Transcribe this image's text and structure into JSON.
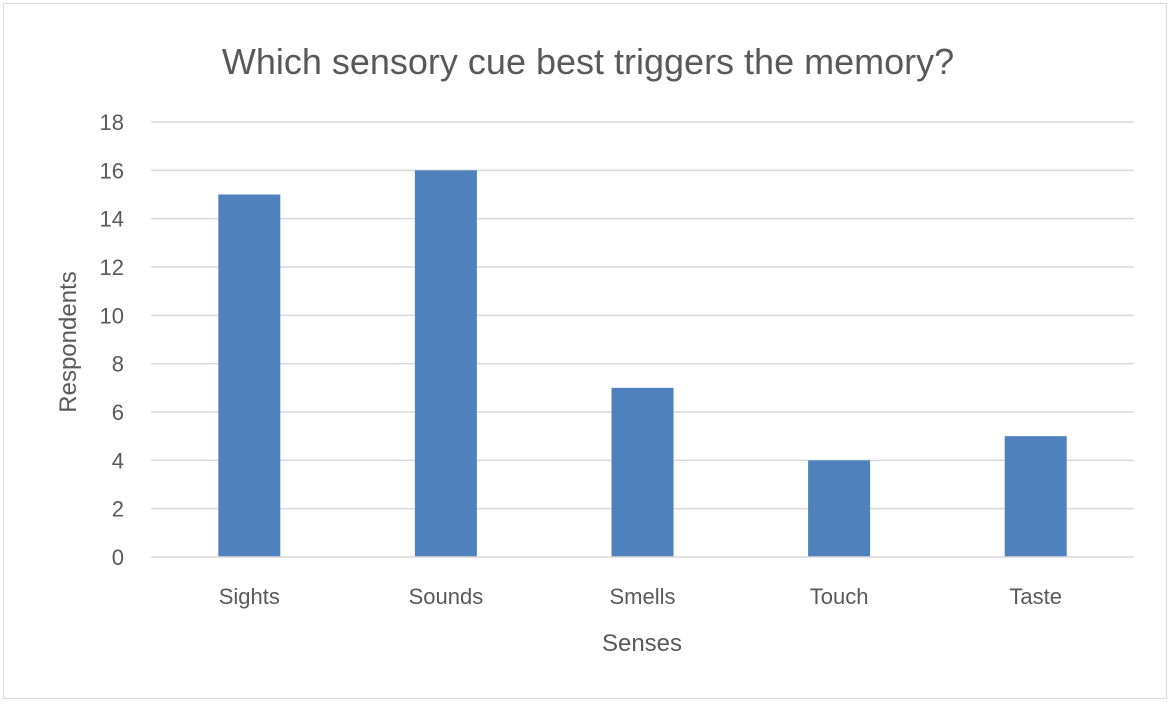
{
  "chart_data": {
    "type": "bar",
    "title": "Which sensory cue best triggers the memory?",
    "xlabel": "Senses",
    "ylabel": "Respondents",
    "categories": [
      "Sights",
      "Sounds",
      "Smells",
      "Touch",
      "Taste"
    ],
    "values": [
      15,
      16,
      7,
      4,
      5
    ],
    "ylim": [
      0,
      18
    ],
    "yticks": [
      "0",
      "2",
      "4",
      "6",
      "8",
      "10",
      "12",
      "14",
      "16",
      "18"
    ],
    "grid": true,
    "legend": "none",
    "bar_color": "#4f81bd",
    "grid_color": "#d9d9d9",
    "text_color": "#595959"
  }
}
